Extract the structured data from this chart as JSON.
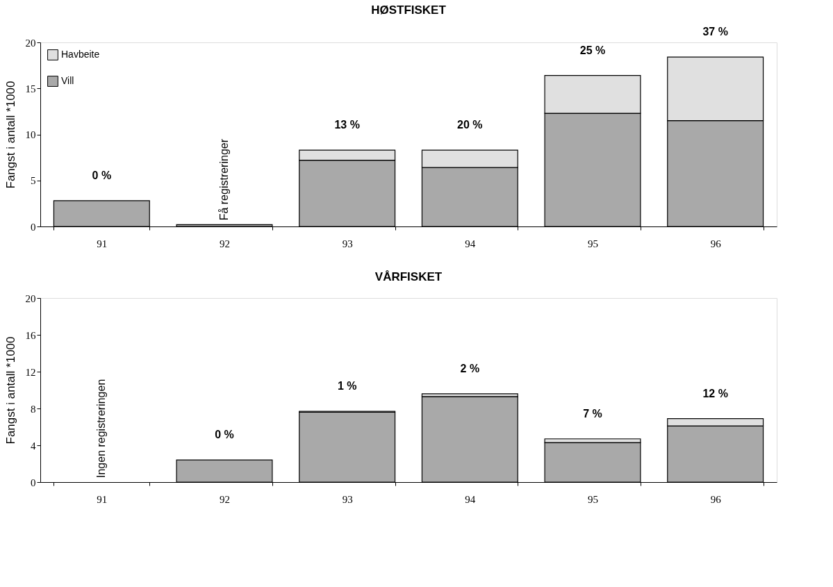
{
  "chart_data": [
    {
      "type": "bar",
      "title": "HØSTFISKET",
      "ylabel": "Fangst i antall *1000",
      "categories": [
        "91",
        "92",
        "93",
        "94",
        "95",
        "96"
      ],
      "stacked": true,
      "legend": "top left",
      "grid": false,
      "ylim": [
        0,
        20
      ],
      "yticks": [
        0,
        5,
        10,
        15,
        20
      ],
      "series": [
        {
          "name": "Vill",
          "color": "#a9a9a9",
          "values": [
            2.8,
            0.2,
            7.2,
            6.4,
            12.3,
            11.5
          ]
        },
        {
          "name": "Havbeite",
          "color": "#e0e0e0",
          "values": [
            0,
            0,
            1.1,
            1.9,
            4.1,
            6.9
          ]
        }
      ],
      "annotations": [
        "0 %",
        "Få registreringer",
        "13 %",
        "20 %",
        "25 %",
        "37 %"
      ]
    },
    {
      "type": "bar",
      "title": "VÅRFISKET",
      "ylabel": "Fangst i antall *1000",
      "categories": [
        "91",
        "92",
        "93",
        "94",
        "95",
        "96"
      ],
      "stacked": true,
      "grid": false,
      "ylim": [
        0,
        20
      ],
      "yticks": [
        0,
        4,
        8,
        12,
        16,
        20
      ],
      "series": [
        {
          "color": "#a9a9a9",
          "values": [
            null,
            2.4,
            7.6,
            9.3,
            4.3,
            6.1
          ]
        },
        {
          "color": "#e0e0e0",
          "values": [
            null,
            0,
            0.1,
            0.3,
            0.4,
            0.8
          ]
        }
      ],
      "annotations": [
        "Ingen registreringen",
        "0 %",
        "1 %",
        "2 %",
        "7 %",
        "12 %"
      ]
    }
  ]
}
